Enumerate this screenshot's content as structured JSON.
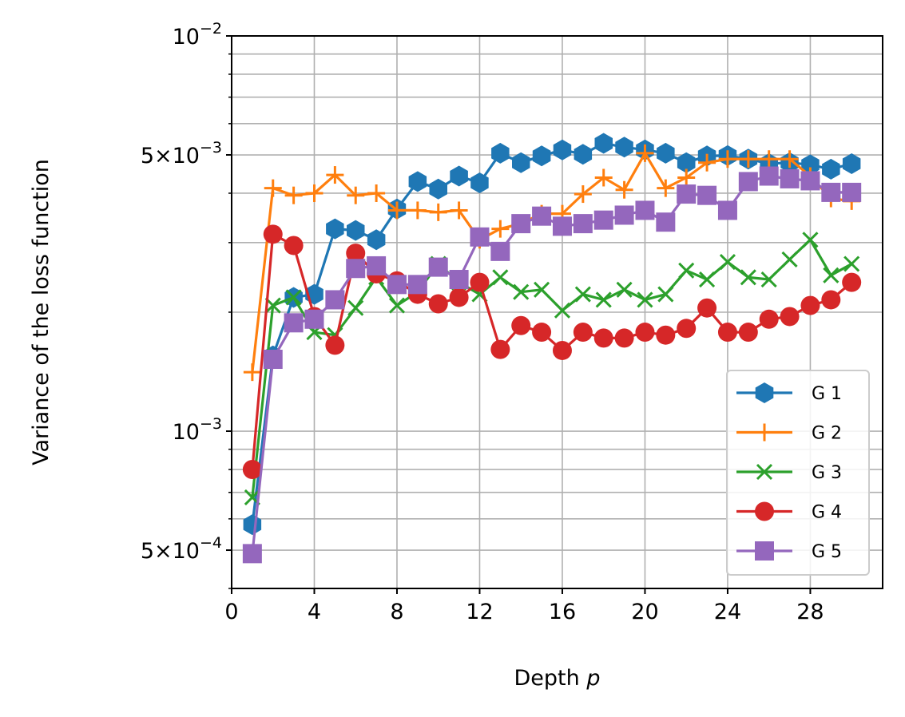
{
  "chart_data": {
    "type": "line",
    "xlabel": "Depth",
    "xlabel_var": "p",
    "ylabel": "Variance of the loss function",
    "yscale": "log",
    "xlim": [
      0,
      31.5
    ],
    "ylim": [
      0.0004,
      0.01
    ],
    "grid": true,
    "legend_position": "lower-right",
    "x_ticks": [
      0,
      4,
      8,
      12,
      16,
      20,
      24,
      28
    ],
    "y_tick_labels": [
      {
        "value": 0.0005,
        "mantissa": "5",
        "exponent": "−4"
      },
      {
        "value": 0.001,
        "mantissa": "",
        "exponent": "−3"
      },
      {
        "value": 0.005,
        "mantissa": "5",
        "exponent": "−3"
      },
      {
        "value": 0.01,
        "mantissa": "",
        "exponent": "−2"
      }
    ],
    "x": [
      1,
      2,
      3,
      4,
      5,
      6,
      7,
      8,
      9,
      10,
      11,
      12,
      13,
      14,
      15,
      16,
      17,
      18,
      19,
      20,
      21,
      22,
      23,
      24,
      25,
      26,
      27,
      28,
      29,
      30
    ],
    "series": [
      {
        "name": "G 1",
        "color": "#1f77b4",
        "marker": "hexagon",
        "values": [
          0.00058,
          0.00155,
          0.00218,
          0.00222,
          0.00325,
          0.00322,
          0.00305,
          0.00365,
          0.00428,
          0.0041,
          0.00442,
          0.00425,
          0.00505,
          0.00478,
          0.00497,
          0.00515,
          0.00502,
          0.00535,
          0.00523,
          0.00515,
          0.00505,
          0.00478,
          0.00497,
          0.00498,
          0.00488,
          0.00475,
          0.00478,
          0.00472,
          0.0046,
          0.00475
        ]
      },
      {
        "name": "G 2",
        "color": "#ff7f0e",
        "marker": "plus",
        "values": [
          0.00141,
          0.00412,
          0.00395,
          0.004,
          0.00445,
          0.00395,
          0.004,
          0.00362,
          0.00362,
          0.00358,
          0.00362,
          0.00305,
          0.00325,
          0.00335,
          0.00355,
          0.00355,
          0.00398,
          0.00438,
          0.00408,
          0.00505,
          0.00412,
          0.00438,
          0.00478,
          0.00488,
          0.00488,
          0.00488,
          0.00488,
          0.00442,
          0.00388,
          0.00382
        ]
      },
      {
        "name": "G 3",
        "color": "#2ca02c",
        "marker": "x",
        "values": [
          0.00068,
          0.00208,
          0.00218,
          0.00178,
          0.00175,
          0.00205,
          0.00245,
          0.00208,
          0.00225,
          0.00265,
          0.00238,
          0.00222,
          0.00245,
          0.00225,
          0.00228,
          0.00202,
          0.00222,
          0.00215,
          0.00228,
          0.00215,
          0.00222,
          0.00255,
          0.00242,
          0.00268,
          0.00245,
          0.00242,
          0.00272,
          0.00305,
          0.00248,
          0.00265
        ]
      },
      {
        "name": "G 4",
        "color": "#d62728",
        "marker": "circle",
        "values": [
          0.0008,
          0.00315,
          0.00295,
          0.00195,
          0.00165,
          0.00282,
          0.0025,
          0.0024,
          0.00222,
          0.0021,
          0.00218,
          0.00238,
          0.00161,
          0.00185,
          0.00178,
          0.0016,
          0.00178,
          0.00172,
          0.00172,
          0.00178,
          0.00175,
          0.00182,
          0.00205,
          0.00178,
          0.00178,
          0.00192,
          0.00195,
          0.00208,
          0.00215,
          0.00238
        ]
      },
      {
        "name": "G 5",
        "color": "#9467bd",
        "marker": "square",
        "values": [
          0.00049,
          0.00152,
          0.00188,
          0.00192,
          0.00215,
          0.00258,
          0.00262,
          0.00235,
          0.00235,
          0.0026,
          0.00242,
          0.0031,
          0.00285,
          0.00335,
          0.0035,
          0.0033,
          0.00335,
          0.00342,
          0.00352,
          0.00362,
          0.00338,
          0.00398,
          0.00395,
          0.00362,
          0.00428,
          0.00442,
          0.00435,
          0.0043,
          0.00402,
          0.00402
        ]
      }
    ]
  }
}
